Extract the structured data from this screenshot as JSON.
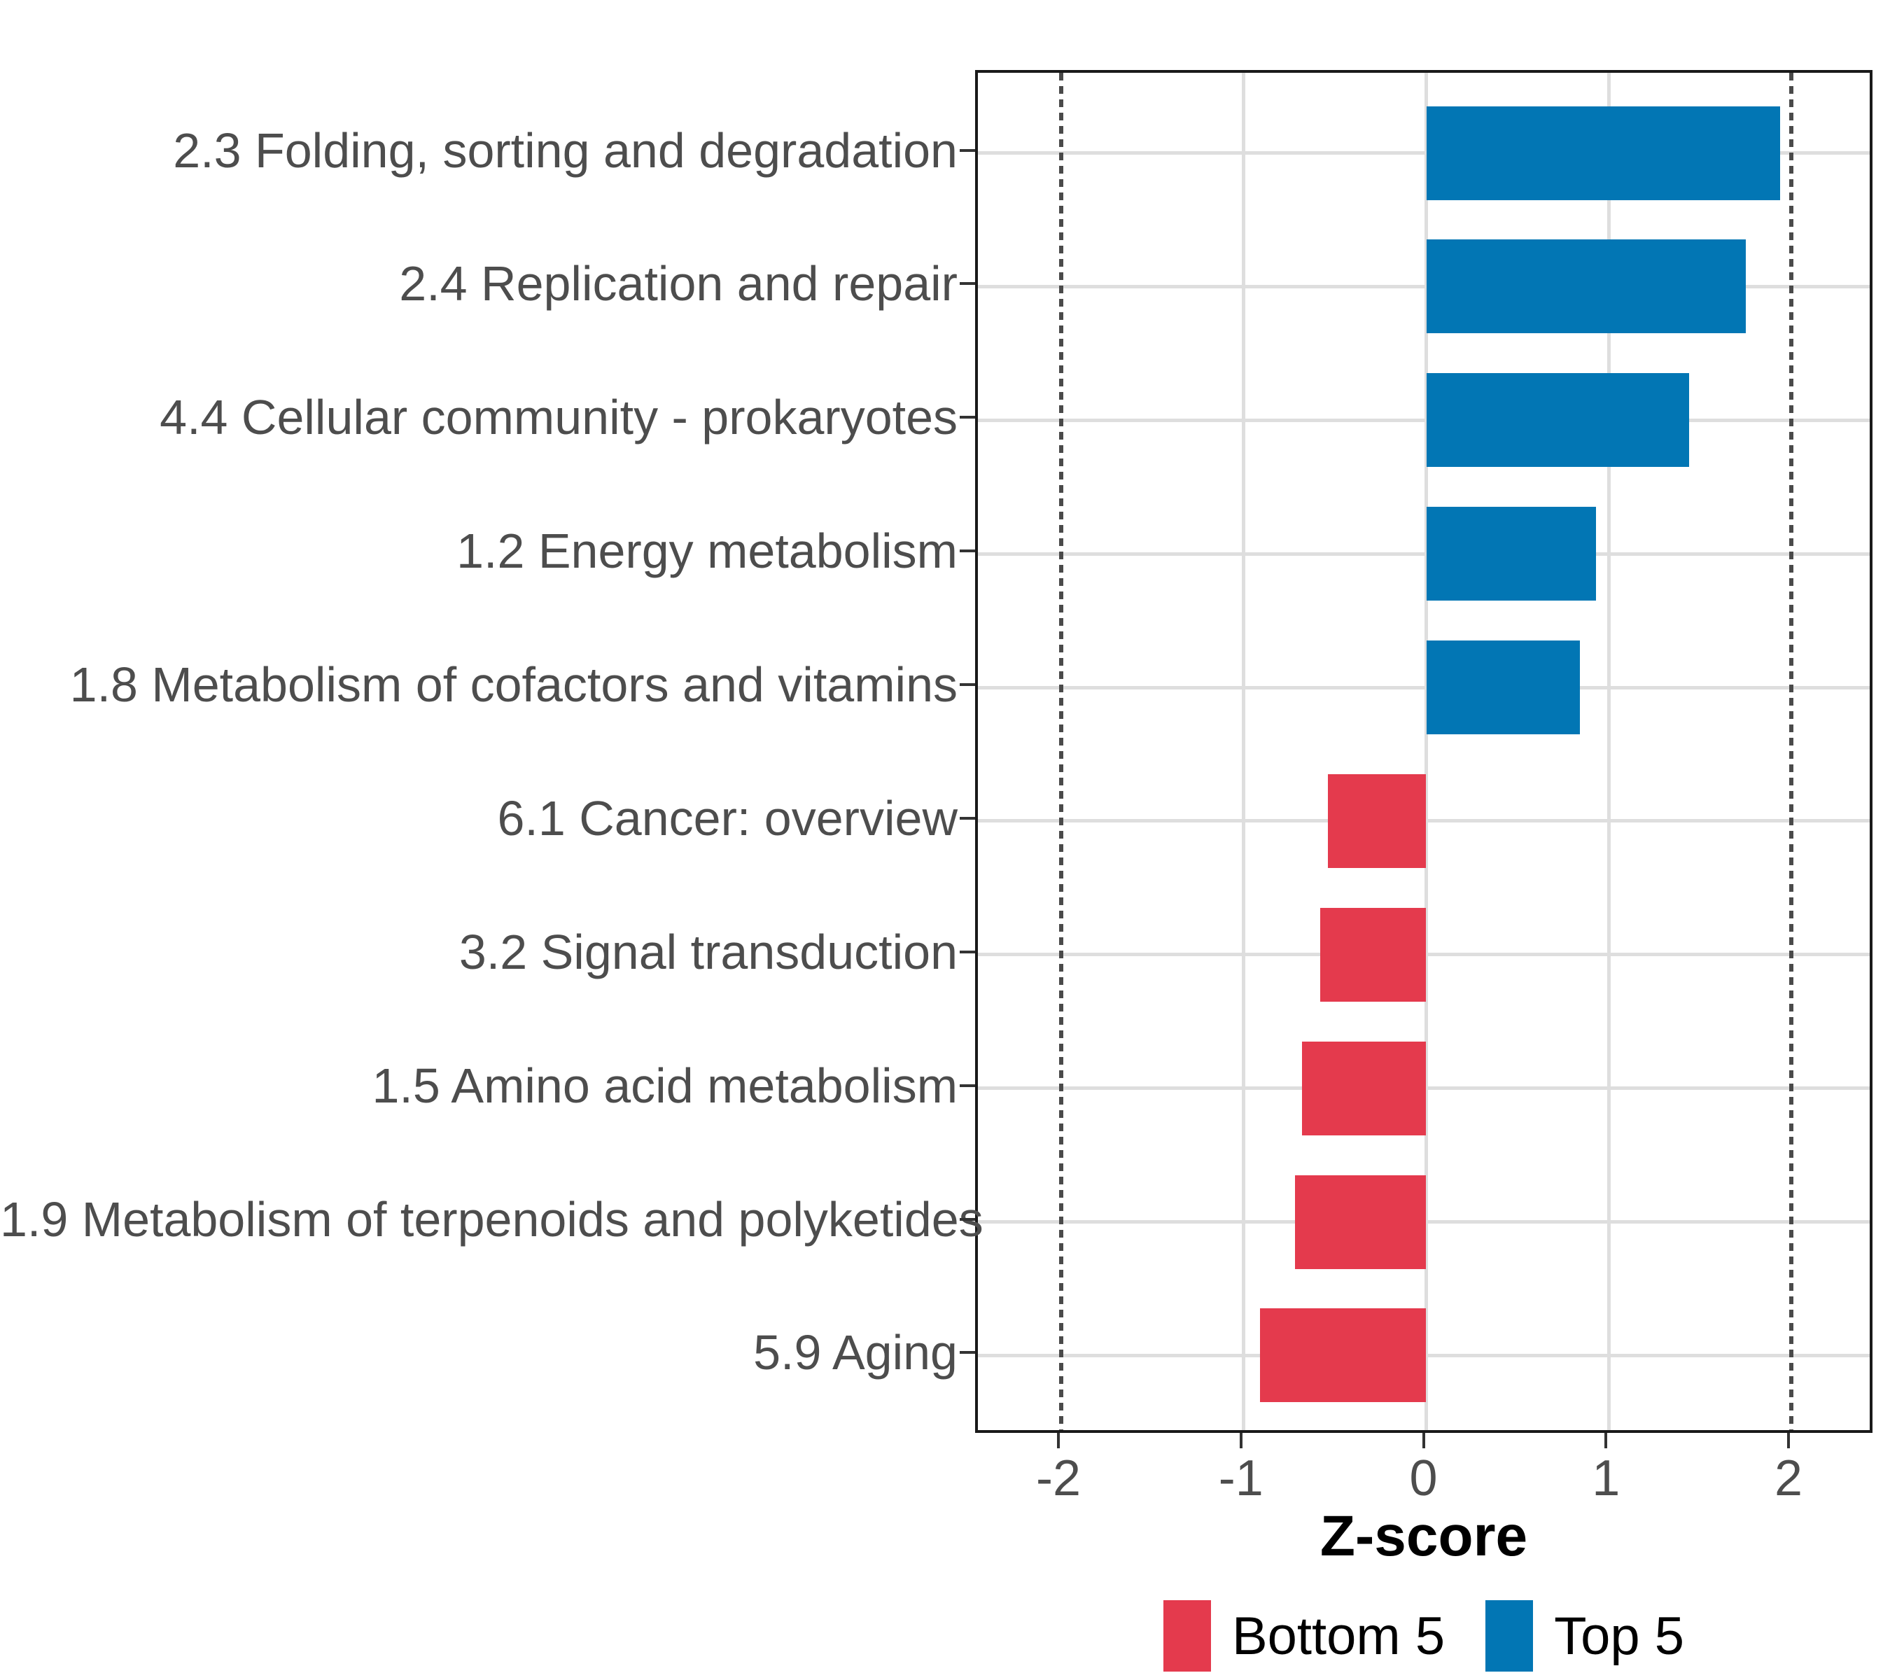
{
  "chart_data": {
    "type": "bar",
    "orientation": "horizontal",
    "title": "",
    "xlabel": "Z-score",
    "ylabel": "",
    "categories": [
      "2.3 Folding, sorting and degradation",
      "2.4 Replication and repair",
      "4.4 Cellular community - prokaryotes",
      "1.2 Energy metabolism",
      "1.8 Metabolism of cofactors and vitamins",
      "6.1 Cancer: overview",
      "3.2 Signal transduction",
      "1.5 Amino acid metabolism",
      "1.9 Metabolism of terpenoids and polyketides",
      "5.9 Aging"
    ],
    "values": [
      1.94,
      1.75,
      1.44,
      0.93,
      0.84,
      -0.54,
      -0.58,
      -0.68,
      -0.72,
      -0.91
    ],
    "groups": [
      "Top 5",
      "Top 5",
      "Top 5",
      "Top 5",
      "Top 5",
      "Bottom 5",
      "Bottom 5",
      "Bottom 5",
      "Bottom 5",
      "Bottom 5"
    ],
    "group_colors": {
      "Top 5": "#0276B4",
      "Bottom 5": "#E43A4D"
    },
    "xlim": [
      -2.46,
      2.46
    ],
    "x_ticks": [
      -2,
      -1,
      0,
      1,
      2
    ],
    "x_tick_labels": [
      "-2",
      "-1",
      "0",
      "1",
      "2"
    ],
    "reference_lines": [
      -2,
      2
    ],
    "grid": "major",
    "legend_position": "bottom",
    "legend": [
      {
        "label": "Bottom 5",
        "color": "#E43A4D"
      },
      {
        "label": "Top 5",
        "color": "#0276B4"
      }
    ]
  },
  "style_colors": {
    "background": "#FFFFFF",
    "gridline": "#DEDEDE",
    "reference_line": "#4A4A4A",
    "axis_text": "#4D4D4D",
    "tick_mark": "#333333",
    "panel_border": "#1A1A1A",
    "title_text": "#000000"
  }
}
